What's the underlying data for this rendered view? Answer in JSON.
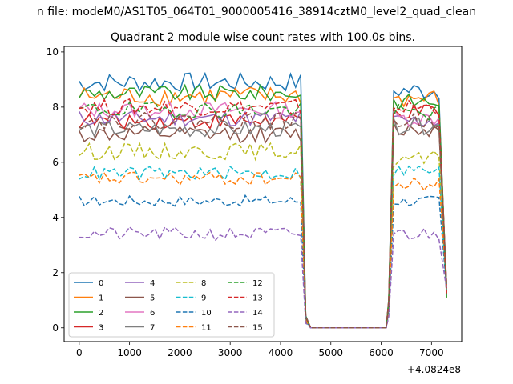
{
  "chart_data": {
    "type": "line",
    "suptitle": "n file: modeM0/AS1T05_064T01_9000005416_38914cztM0_level2_quad_clean",
    "title": "Quadrant 2 module wise count rates with 100.0s bins.",
    "xlabel": "",
    "ylabel": "",
    "x_offset_label": "+4.0824e8",
    "xlim": [
      -300,
      7600
    ],
    "ylim": [
      -0.5,
      10.2
    ],
    "x_ticks": [
      0,
      1000,
      2000,
      3000,
      4000,
      5000,
      6000,
      7000
    ],
    "x_tick_labels": [
      "0",
      "1000",
      "2000",
      "3000",
      "4000",
      "5000",
      "6000",
      "7000"
    ],
    "y_ticks": [
      0,
      2,
      4,
      6,
      8,
      10
    ],
    "y_tick_labels": [
      "0",
      "2",
      "4",
      "6",
      "8",
      "10"
    ],
    "legend_position": "lower-left",
    "legend_columns": 4,
    "x_on": [
      0,
      4400
    ],
    "x_on2": [
      6250,
      7300
    ],
    "x_drop": [
      4500,
      4600
    ],
    "x_zero": [
      4600,
      6100
    ],
    "series": [
      {
        "name": "0",
        "color": "#1f77b4",
        "dash": "solid",
        "level": 8.9,
        "spread": 0.35,
        "level2": 8.6
      },
      {
        "name": "1",
        "color": "#ff7f0e",
        "dash": "solid",
        "level": 8.4,
        "spread": 0.35,
        "level2": 8.3
      },
      {
        "name": "2",
        "color": "#2ca02c",
        "dash": "solid",
        "level": 8.5,
        "spread": 0.3,
        "level2": 8.2
      },
      {
        "name": "3",
        "color": "#d62728",
        "dash": "solid",
        "level": 7.5,
        "spread": 0.3,
        "level2": 7.8
      },
      {
        "name": "4",
        "color": "#9467bd",
        "dash": "solid",
        "level": 7.6,
        "spread": 0.3,
        "level2": 7.5
      },
      {
        "name": "5",
        "color": "#8c564b",
        "dash": "solid",
        "level": 7.0,
        "spread": 0.3,
        "level2": 7.2
      },
      {
        "name": "6",
        "color": "#e377c2",
        "dash": "solid",
        "level": 7.9,
        "spread": 0.3,
        "level2": 7.6
      },
      {
        "name": "7",
        "color": "#7f7f7f",
        "dash": "solid",
        "level": 7.2,
        "spread": 0.3,
        "level2": 7.3
      },
      {
        "name": "8",
        "color": "#bcbd22",
        "dash": "dashed",
        "level": 6.4,
        "spread": 0.3,
        "level2": 6.1
      },
      {
        "name": "9",
        "color": "#17becf",
        "dash": "dashed",
        "level": 5.6,
        "spread": 0.25,
        "level2": 5.7
      },
      {
        "name": "10",
        "color": "#1f77b4",
        "dash": "dashed",
        "level": 4.6,
        "spread": 0.2,
        "level2": 4.6
      },
      {
        "name": "11",
        "color": "#ff7f0e",
        "dash": "dashed",
        "level": 5.4,
        "spread": 0.25,
        "level2": 5.2
      },
      {
        "name": "12",
        "color": "#2ca02c",
        "dash": "dashed",
        "level": 7.9,
        "spread": 0.3,
        "level2": 7.8
      },
      {
        "name": "13",
        "color": "#d62728",
        "dash": "dashed",
        "level": 8.0,
        "spread": 0.3,
        "level2": 8.0
      },
      {
        "name": "14",
        "color": "#9467bd",
        "dash": "dashed",
        "level": 3.4,
        "spread": 0.25,
        "level2": 3.4
      },
      {
        "name": "15",
        "color": "#8c564b",
        "dash": "dashed",
        "level": 7.5,
        "spread": 0.3,
        "level2": 7.5
      }
    ]
  }
}
